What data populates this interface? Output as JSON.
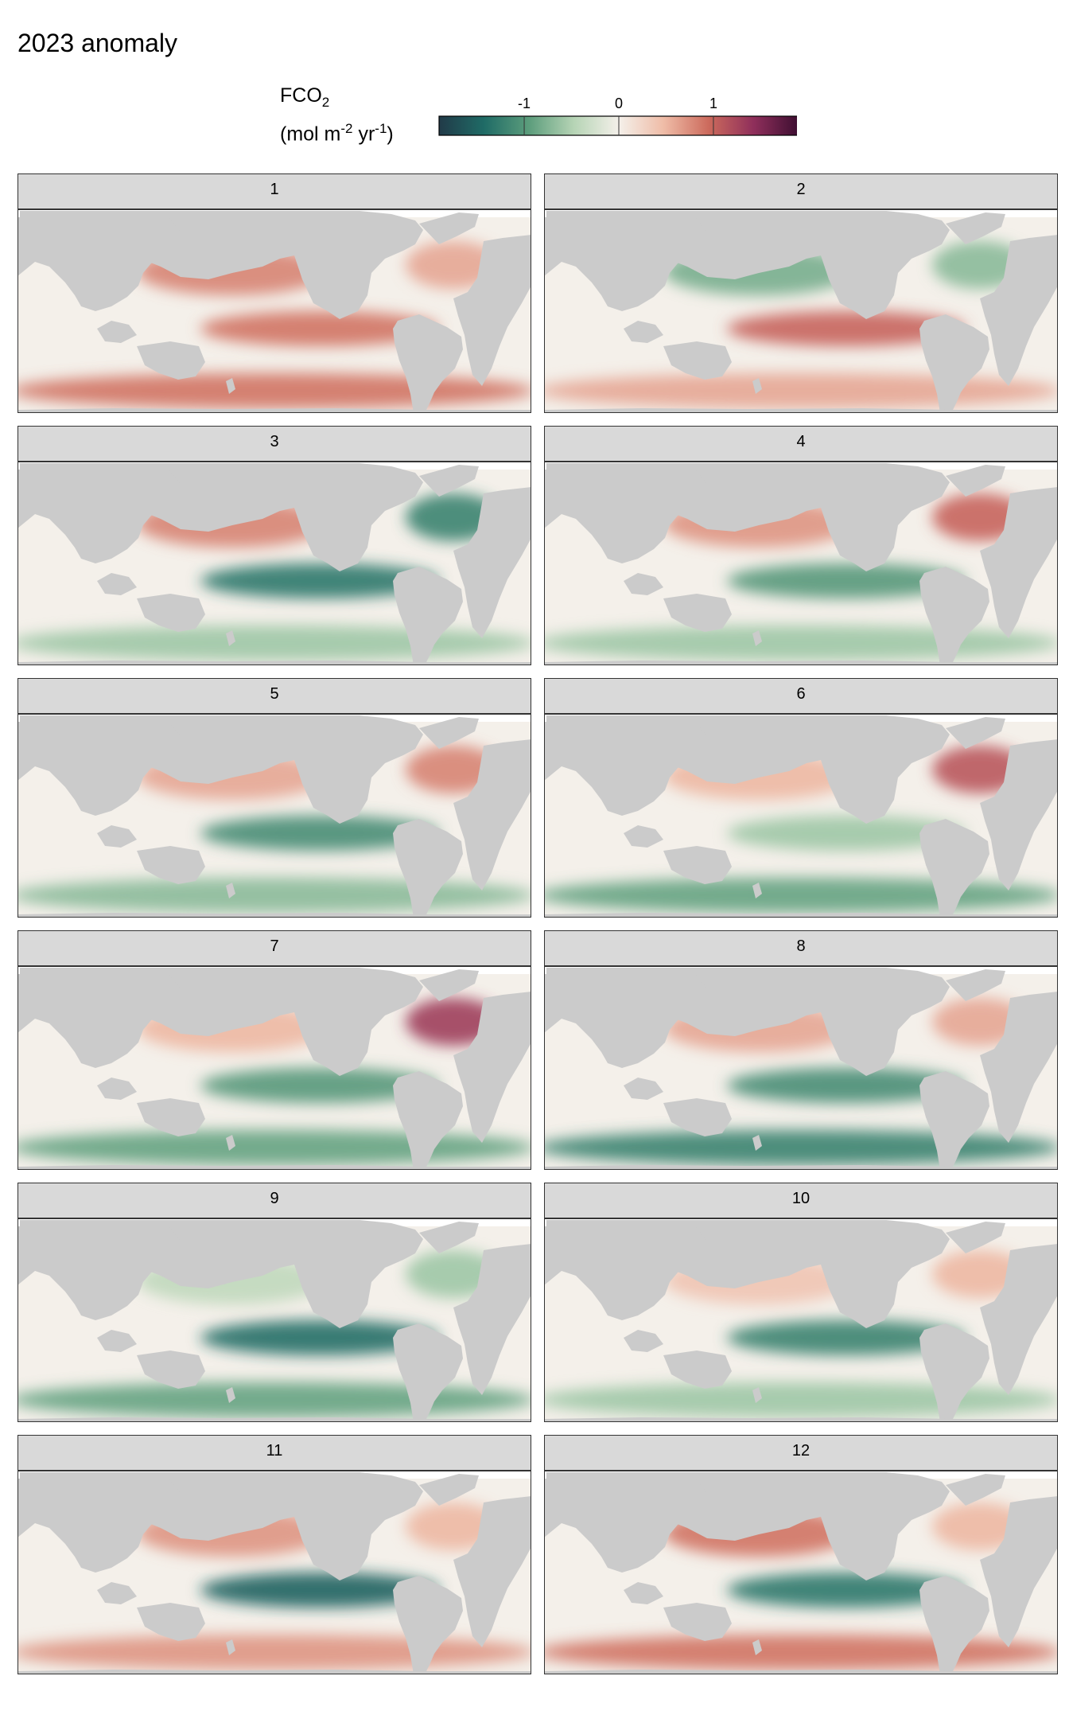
{
  "title": "2023 anomaly",
  "legend": {
    "title_line1": "FCO",
    "title_sub": "2",
    "title_line2_a": "(mol m",
    "title_line2_sup1": "-2",
    "title_line2_b": " yr",
    "title_line2_sup2": "-1",
    "title_line2_c": ")",
    "colors": [
      "#213a48",
      "#1f6b66",
      "#5c9d7c",
      "#b6d4b5",
      "#f4f0ea",
      "#efbca7",
      "#cc6a5c",
      "#8f2f5b",
      "#3d0e31"
    ],
    "range": [
      -1.9,
      1.9
    ]
  },
  "colors": {
    "land": "#cbcbcb",
    "strip": "#d9d9d9",
    "missing": "#ffffff"
  },
  "chart_data": {
    "type": "heatmap",
    "title": "2023 anomaly",
    "variable": "FCO2 anomaly",
    "units": "mol m-2 yr-1",
    "colorbar_ticks": [
      -1,
      0,
      1
    ],
    "color_range": [
      -1.9,
      1.9
    ],
    "facet_by": "month",
    "panels": [
      {
        "label": "1",
        "equatorial_pacific": 0.9,
        "north_pacific": 0.8,
        "southern_ocean": 0.9,
        "north_atlantic": 0.6
      },
      {
        "label": "2",
        "equatorial_pacific": 1.0,
        "north_pacific": -0.8,
        "southern_ocean": 0.6,
        "north_atlantic": -0.7
      },
      {
        "label": "3",
        "equatorial_pacific": -1.3,
        "north_pacific": 0.8,
        "southern_ocean": -0.6,
        "north_atlantic": -1.2
      },
      {
        "label": "4",
        "equatorial_pacific": -1.0,
        "north_pacific": 0.7,
        "southern_ocean": -0.6,
        "north_atlantic": 1.0
      },
      {
        "label": "5",
        "equatorial_pacific": -1.1,
        "north_pacific": 0.6,
        "southern_ocean": -0.7,
        "north_atlantic": 0.8
      },
      {
        "label": "6",
        "equatorial_pacific": -0.6,
        "north_pacific": 0.5,
        "southern_ocean": -0.9,
        "north_atlantic": 1.1
      },
      {
        "label": "7",
        "equatorial_pacific": -1.0,
        "north_pacific": 0.5,
        "southern_ocean": -0.9,
        "north_atlantic": 1.3
      },
      {
        "label": "8",
        "equatorial_pacific": -1.1,
        "north_pacific": 0.6,
        "southern_ocean": -1.2,
        "north_atlantic": 0.6
      },
      {
        "label": "9",
        "equatorial_pacific": -1.4,
        "north_pacific": -0.4,
        "southern_ocean": -0.9,
        "north_atlantic": -0.6
      },
      {
        "label": "10",
        "equatorial_pacific": -1.2,
        "north_pacific": 0.4,
        "southern_ocean": -0.6,
        "north_atlantic": 0.5
      },
      {
        "label": "11",
        "equatorial_pacific": -1.5,
        "north_pacific": 0.7,
        "southern_ocean": 0.7,
        "north_atlantic": 0.5
      },
      {
        "label": "12",
        "equatorial_pacific": -1.3,
        "north_pacific": 0.9,
        "southern_ocean": 0.9,
        "north_atlantic": 0.5
      }
    ]
  }
}
